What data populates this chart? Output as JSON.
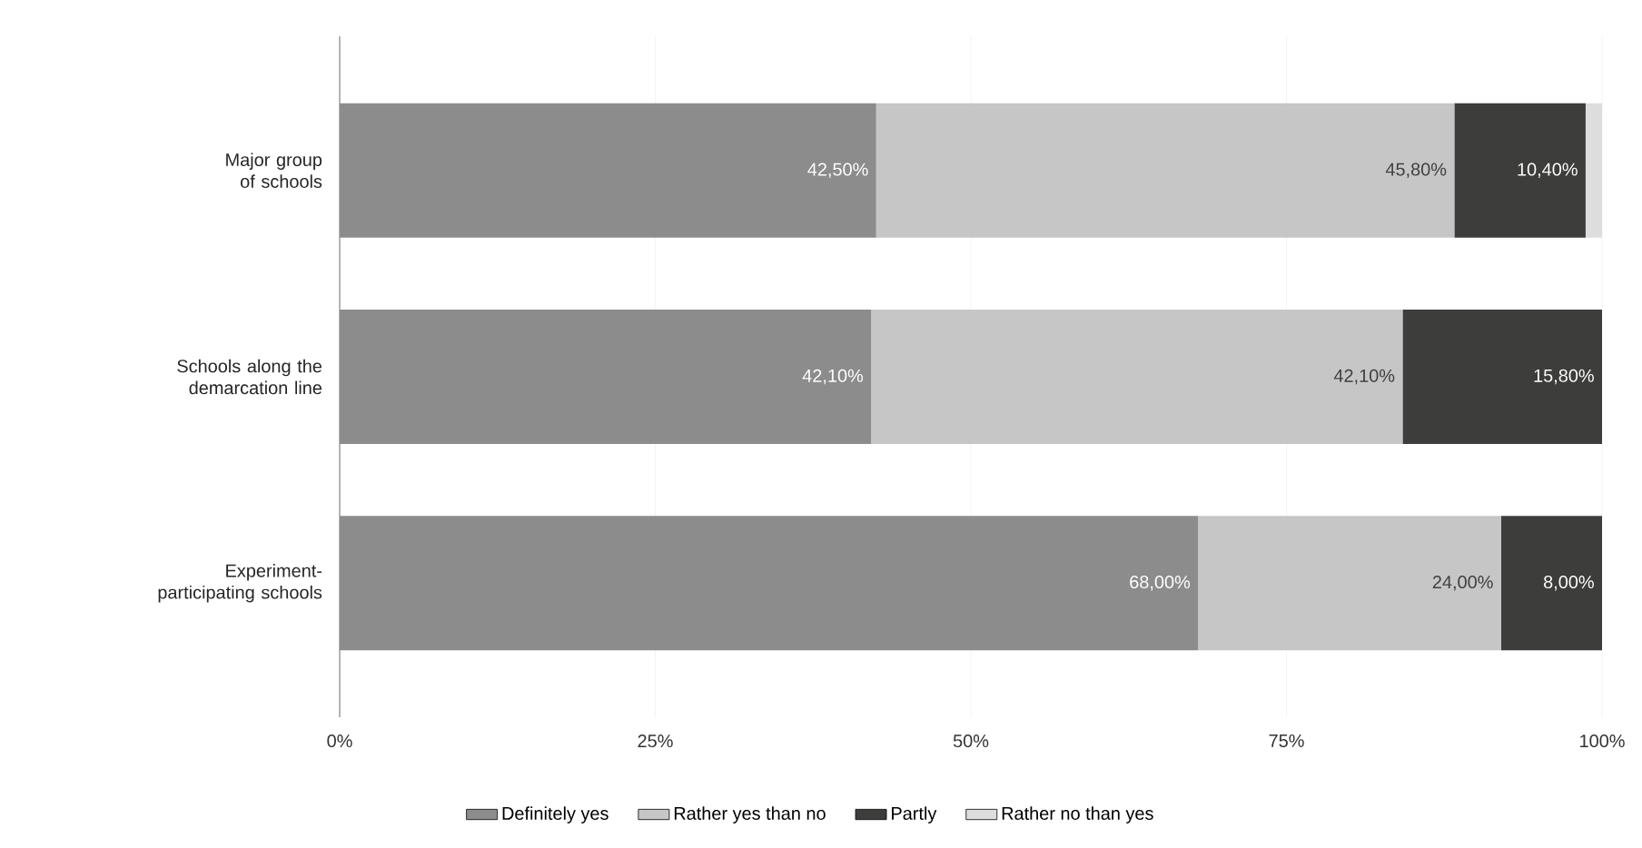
{
  "chart_data": {
    "type": "bar",
    "orientation": "horizontal",
    "stacked": true,
    "categories": [
      "Major group of schools",
      "Schools along the demarcation line",
      "Experiment-participating schools"
    ],
    "series": [
      {
        "name": "Definitely yes",
        "color": "#8c8c8c",
        "values": [
          42.5,
          42.1,
          68.0
        ],
        "value_labels": [
          "42,50%",
          "42,10%",
          "68,00%"
        ]
      },
      {
        "name": "Rather yes than no",
        "color": "#c6c6c6",
        "values": [
          45.8,
          42.1,
          24.0
        ],
        "value_labels": [
          "45,80%",
          "42,10%",
          "24,00%"
        ]
      },
      {
        "name": "Partly",
        "color": "#3d3d3b",
        "values": [
          10.4,
          15.8,
          8.0
        ],
        "value_labels": [
          "10,40%",
          "15,80%",
          "8,00%"
        ]
      },
      {
        "name": "Rather no than yes",
        "color": "#dddddd",
        "values": [
          1.3,
          null,
          null
        ],
        "value_labels": [
          null,
          null,
          null
        ]
      }
    ],
    "xlim": [
      0,
      100
    ],
    "xticks": [
      {
        "value": 0,
        "label": "0%"
      },
      {
        "value": 25,
        "label": "25%"
      },
      {
        "value": 50,
        "label": "50%"
      },
      {
        "value": 75,
        "label": "75%"
      },
      {
        "value": 100,
        "label": "100%"
      }
    ],
    "grid": "x",
    "legend": "bottom"
  }
}
